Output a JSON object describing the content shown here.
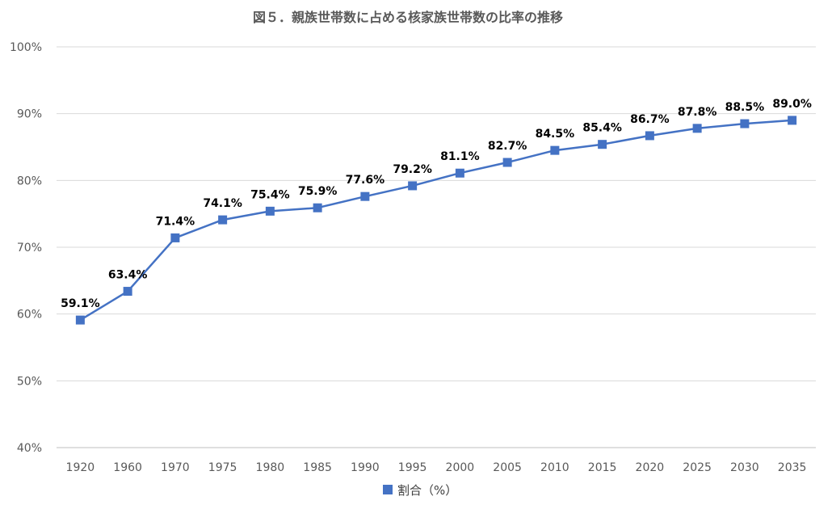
{
  "chart_data": {
    "type": "line",
    "title": "図５．親族世帯数に占める核家族世帯数の比率の推移",
    "categories": [
      "1920",
      "1960",
      "1970",
      "1975",
      "1980",
      "1985",
      "1990",
      "1995",
      "2000",
      "2005",
      "2010",
      "2015",
      "2020",
      "2025",
      "2030",
      "2035"
    ],
    "series": [
      {
        "name": "割合（%）",
        "values": [
          59.1,
          63.4,
          71.4,
          74.1,
          75.4,
          75.9,
          77.6,
          79.2,
          81.1,
          82.7,
          84.5,
          85.4,
          86.7,
          87.8,
          88.5,
          89.0
        ],
        "labels": [
          "59.1%",
          "63.4%",
          "71.4%",
          "74.1%",
          "75.4%",
          "75.9%",
          "77.6%",
          "79.2%",
          "81.1%",
          "82.7%",
          "84.5%",
          "85.4%",
          "86.7%",
          "87.8%",
          "88.5%",
          "89.0%"
        ],
        "color": "#4472C4"
      }
    ],
    "ylim": [
      40,
      100
    ],
    "yticks": [
      "40%",
      "50%",
      "60%",
      "70%",
      "80%",
      "90%",
      "100%"
    ],
    "grid": true,
    "legend_position": "bottom"
  }
}
